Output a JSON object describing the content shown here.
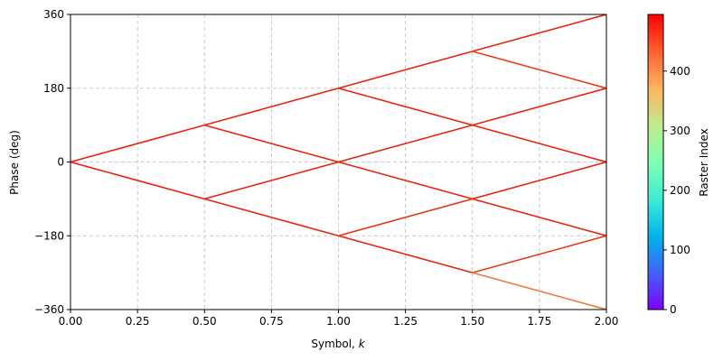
{
  "chart_data": {
    "type": "line",
    "xlabel": "Symbol, k",
    "ylabel": "Phase (deg)",
    "xlim": [
      0,
      2
    ],
    "ylim": [
      -360,
      360
    ],
    "xticks": [
      0,
      0.25,
      0.5,
      0.75,
      1.0,
      1.25,
      1.5,
      1.75,
      2.0
    ],
    "xtick_labels": [
      "0.00",
      "0.25",
      "0.50",
      "0.75",
      "1.00",
      "1.25",
      "1.50",
      "1.75",
      "2.00"
    ],
    "yticks": [
      -360,
      -180,
      0,
      180,
      360
    ],
    "ytick_labels": [
      "−360",
      "−180",
      "0",
      "180",
      "360"
    ],
    "grid": true,
    "grid_style": "dashed",
    "segments": [
      {
        "x": [
          0.0,
          0.5
        ],
        "y": [
          0,
          90
        ],
        "color": "#e8230f"
      },
      {
        "x": [
          0.0,
          0.5
        ],
        "y": [
          0,
          -90
        ],
        "color": "#e8230f"
      },
      {
        "x": [
          0.5,
          1.0
        ],
        "y": [
          90,
          180
        ],
        "color": "#e8230f"
      },
      {
        "x": [
          0.5,
          1.0
        ],
        "y": [
          90,
          0
        ],
        "color": "#e8230f"
      },
      {
        "x": [
          0.5,
          1.0
        ],
        "y": [
          -90,
          0
        ],
        "color": "#e8230f"
      },
      {
        "x": [
          0.5,
          1.0
        ],
        "y": [
          -90,
          -180
        ],
        "color": "#e8230f"
      },
      {
        "x": [
          1.0,
          1.5
        ],
        "y": [
          180,
          270
        ],
        "color": "#e8230f"
      },
      {
        "x": [
          1.0,
          1.5
        ],
        "y": [
          180,
          90
        ],
        "color": "#e8230f"
      },
      {
        "x": [
          1.0,
          1.5
        ],
        "y": [
          0,
          90
        ],
        "color": "#e8230f"
      },
      {
        "x": [
          1.0,
          1.5
        ],
        "y": [
          0,
          -90
        ],
        "color": "#e8230f"
      },
      {
        "x": [
          1.0,
          1.5
        ],
        "y": [
          -180,
          -90
        ],
        "color": "#e8310f"
      },
      {
        "x": [
          1.0,
          1.5
        ],
        "y": [
          -180,
          -270
        ],
        "color": "#e8230f"
      },
      {
        "x": [
          1.5,
          2.0
        ],
        "y": [
          270,
          360
        ],
        "color": "#e8230f"
      },
      {
        "x": [
          1.5,
          2.0
        ],
        "y": [
          270,
          180
        ],
        "color": "#ea3c19"
      },
      {
        "x": [
          1.5,
          2.0
        ],
        "y": [
          90,
          180
        ],
        "color": "#e8230f"
      },
      {
        "x": [
          1.5,
          2.0
        ],
        "y": [
          90,
          0
        ],
        "color": "#e8230f"
      },
      {
        "x": [
          1.5,
          2.0
        ],
        "y": [
          -90,
          0
        ],
        "color": "#e8230f"
      },
      {
        "x": [
          1.5,
          2.0
        ],
        "y": [
          -90,
          -180
        ],
        "color": "#e8230f"
      },
      {
        "x": [
          1.5,
          2.0
        ],
        "y": [
          -270,
          -180
        ],
        "color": "#e93a15"
      },
      {
        "x": [
          1.5,
          2.0
        ],
        "y": [
          -270,
          -360
        ],
        "color": "#ee7a3c"
      }
    ],
    "colorbar": {
      "label": "Raster Index",
      "colormap": "rainbow",
      "range": [
        0,
        495
      ],
      "ticks": [
        0,
        100,
        200,
        300,
        400
      ],
      "tick_labels": [
        "0",
        "100",
        "200",
        "300",
        "400"
      ],
      "stops": [
        "#8000ff",
        "#4062fa",
        "#00b5eb",
        "#40ecd4",
        "#80ffb4",
        "#c0eb8d",
        "#ffb360",
        "#ff6131",
        "#ff0000"
      ]
    }
  }
}
